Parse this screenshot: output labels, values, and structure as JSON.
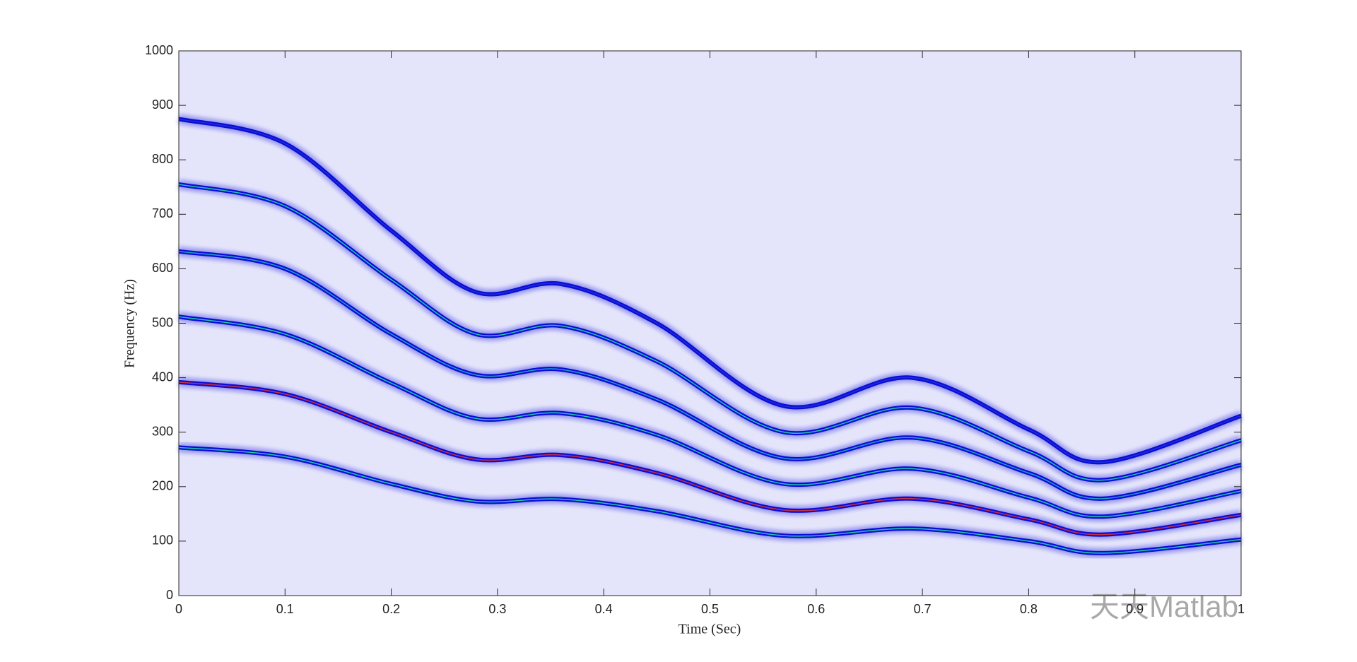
{
  "chart_data": {
    "type": "line",
    "xlabel": "Time (Sec)",
    "ylabel": "Frequency (Hz)",
    "watermark": "天天Matlab",
    "x": [
      0,
      0.1,
      0.2,
      0.28,
      0.36,
      0.45,
      0.57,
      0.69,
      0.8,
      0.87,
      1.0
    ],
    "series": [
      {
        "color": "#0c0cd6",
        "core_color": "#20c8b0",
        "values": [
          272,
          255,
          205,
          173,
          177,
          155,
          110,
          123,
          100,
          78,
          103
        ]
      },
      {
        "color": "#0c0cd6",
        "core_color": "#c83040",
        "values": [
          392,
          370,
          300,
          250,
          258,
          225,
          157,
          178,
          140,
          112,
          148
        ]
      },
      {
        "color": "#0c0cd6",
        "core_color": "#20c8b0",
        "values": [
          512,
          480,
          390,
          325,
          335,
          295,
          205,
          233,
          180,
          145,
          192
        ]
      },
      {
        "color": "#0c0cd6",
        "core_color": "#20a0c8",
        "values": [
          632,
          600,
          480,
          405,
          415,
          360,
          252,
          290,
          225,
          178,
          240
        ]
      },
      {
        "color": "#0c0cd6",
        "core_color": "#20c8b0",
        "values": [
          755,
          715,
          580,
          480,
          495,
          430,
          300,
          345,
          265,
          212,
          285
        ]
      },
      {
        "color": "#0c0cd6",
        "core_color": "#1a30d8",
        "values": [
          875,
          830,
          670,
          557,
          572,
          500,
          348,
          400,
          305,
          245,
          330
        ]
      }
    ],
    "xlim": [
      0,
      1
    ],
    "xticks": [
      0,
      0.1,
      0.2,
      0.3,
      0.4,
      0.5,
      0.6,
      0.7,
      0.8,
      0.9,
      1
    ],
    "ylim": [
      0,
      1000
    ],
    "yticks": [
      0,
      100,
      200,
      300,
      400,
      500,
      600,
      700,
      800,
      900,
      1000
    ],
    "background": "#e4e4fb"
  }
}
